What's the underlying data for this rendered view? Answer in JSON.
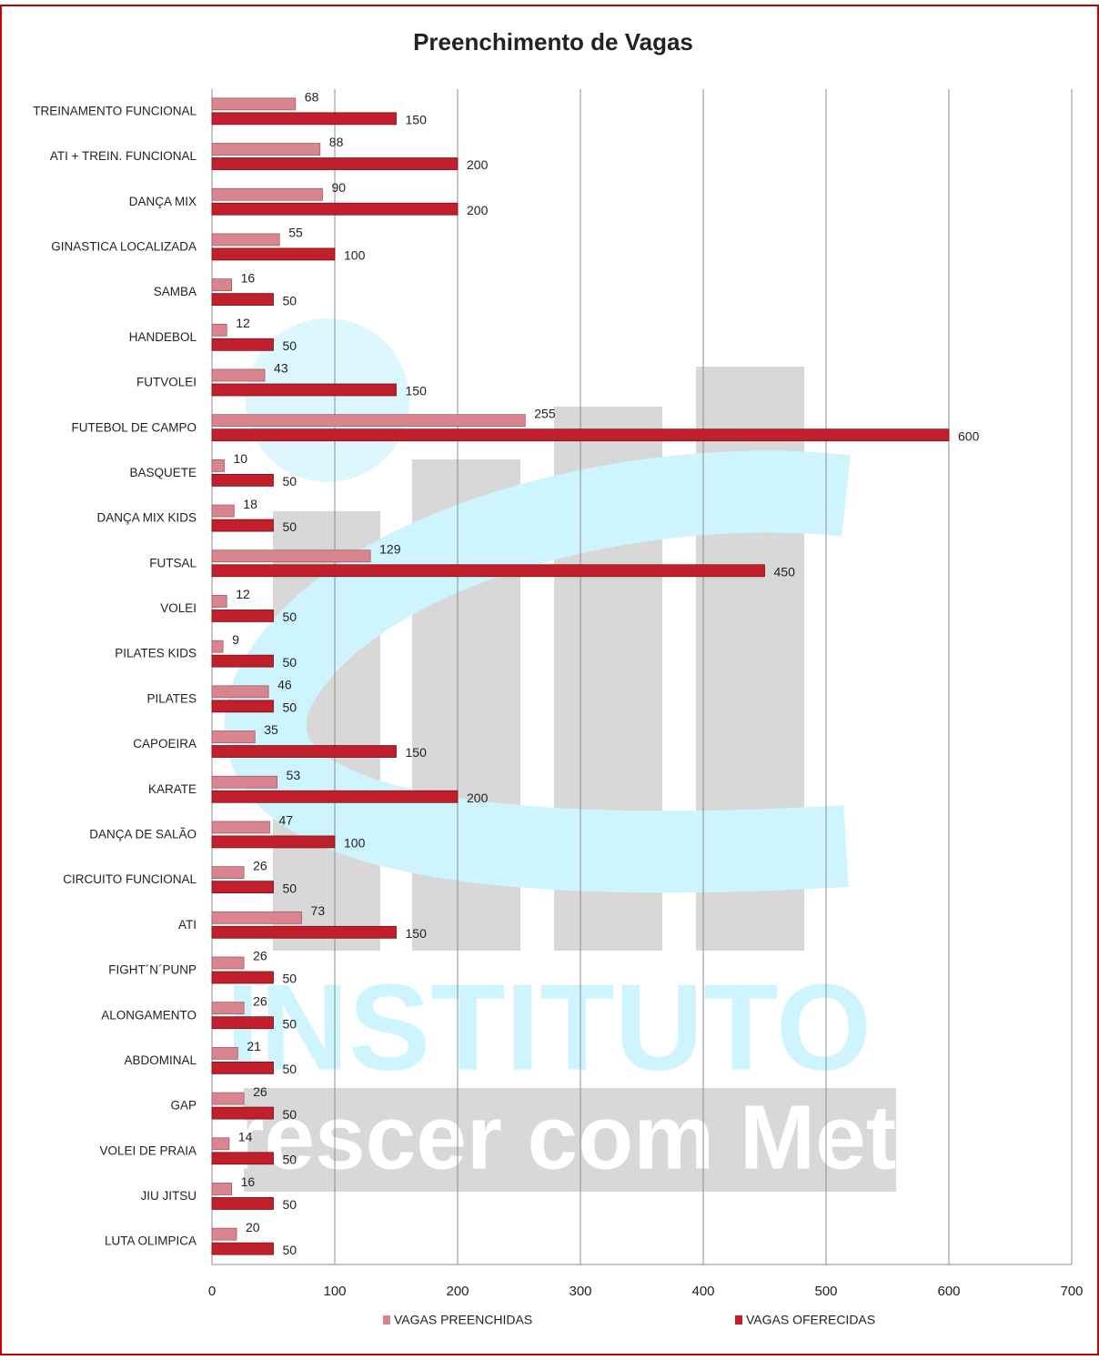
{
  "chart_data": {
    "type": "bar",
    "orientation": "horizontal",
    "title": "Preenchimento de Vagas",
    "categories": [
      "TREINAMENTO FUNCIONAL",
      "ATI + TREIN. FUNCIONAL",
      "DANÇA MIX",
      "GINASTICA LOCALIZADA",
      "SAMBA",
      "HANDEBOL",
      "FUTVOLEI",
      "FUTEBOL DE CAMPO",
      "BASQUETE",
      "DANÇA MIX KIDS",
      "FUTSAL",
      "VOLEI",
      "PILATES KIDS",
      "PILATES",
      "CAPOEIRA",
      "KARATE",
      "DANÇA DE SALÃO",
      "CIRCUITO FUNCIONAL",
      "ATI",
      "FIGHT´N´PUNP",
      "ALONGAMENTO",
      "ABDOMINAL",
      "GAP",
      "VOLEI DE PRAIA",
      "JIU JITSU",
      "LUTA OLIMPICA"
    ],
    "series": [
      {
        "name": "VAGAS PREENCHIDAS",
        "color": "#d98590",
        "values": [
          68,
          88,
          90,
          55,
          16,
          12,
          43,
          255,
          10,
          18,
          129,
          12,
          9,
          46,
          35,
          53,
          47,
          26,
          73,
          26,
          26,
          21,
          26,
          14,
          16,
          20
        ]
      },
      {
        "name": "VAGAS OFERECIDAS",
        "color": "#c21f2d",
        "values": [
          150,
          200,
          200,
          100,
          50,
          50,
          150,
          600,
          50,
          50,
          450,
          50,
          50,
          50,
          150,
          200,
          100,
          50,
          150,
          50,
          50,
          50,
          50,
          50,
          50,
          50
        ]
      }
    ],
    "xlim": [
      0,
      700
    ],
    "xticks": [
      0,
      100,
      200,
      300,
      400,
      500,
      600,
      700
    ],
    "grid": true,
    "legend": "bottom",
    "watermark": [
      "INSTITUTO",
      "Crescer com Meta"
    ]
  }
}
